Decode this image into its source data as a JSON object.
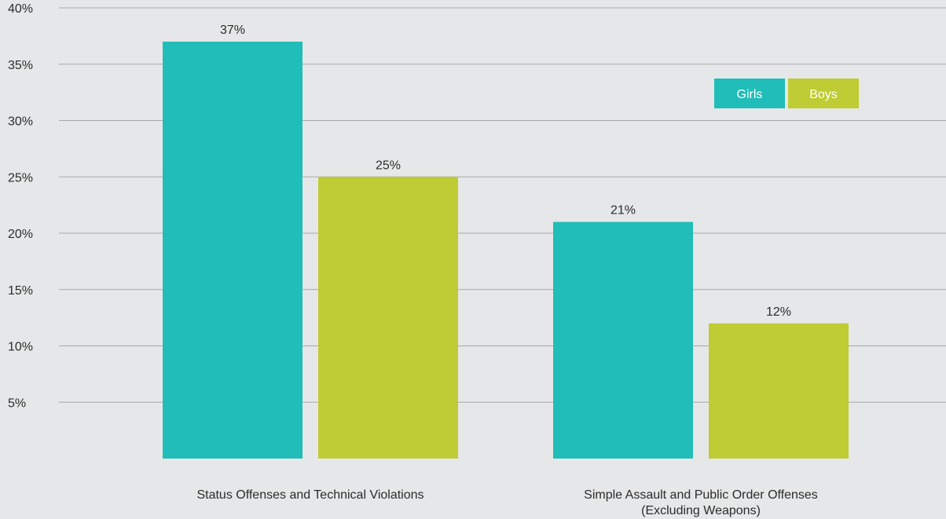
{
  "chart_data": {
    "type": "bar",
    "categories": [
      [
        "Status Offenses and Technical Violations"
      ],
      [
        "Simple Assault and Public Order Offenses",
        "(Excluding Weapons)"
      ]
    ],
    "series": [
      {
        "name": "Girls",
        "color": "#21bdb8",
        "values": [
          37,
          21
        ],
        "labels": [
          "37%",
          "21%"
        ]
      },
      {
        "name": "Boys",
        "color": "#bfcc33",
        "values": [
          25,
          12
        ],
        "labels": [
          "25%",
          "12%"
        ]
      }
    ],
    "y_ticks": [
      {
        "value": 5,
        "label": "5%"
      },
      {
        "value": 10,
        "label": "10%"
      },
      {
        "value": 15,
        "label": "15%"
      },
      {
        "value": 20,
        "label": "20%"
      },
      {
        "value": 25,
        "label": "25%"
      },
      {
        "value": 30,
        "label": "30%"
      },
      {
        "value": 35,
        "label": "35%"
      },
      {
        "value": 40,
        "label": "40%"
      }
    ],
    "ylim": [
      0,
      40
    ],
    "grid": true,
    "legend_position": "top-right",
    "background": "#e6e7e8",
    "grid_color": "#a6a8ab"
  }
}
